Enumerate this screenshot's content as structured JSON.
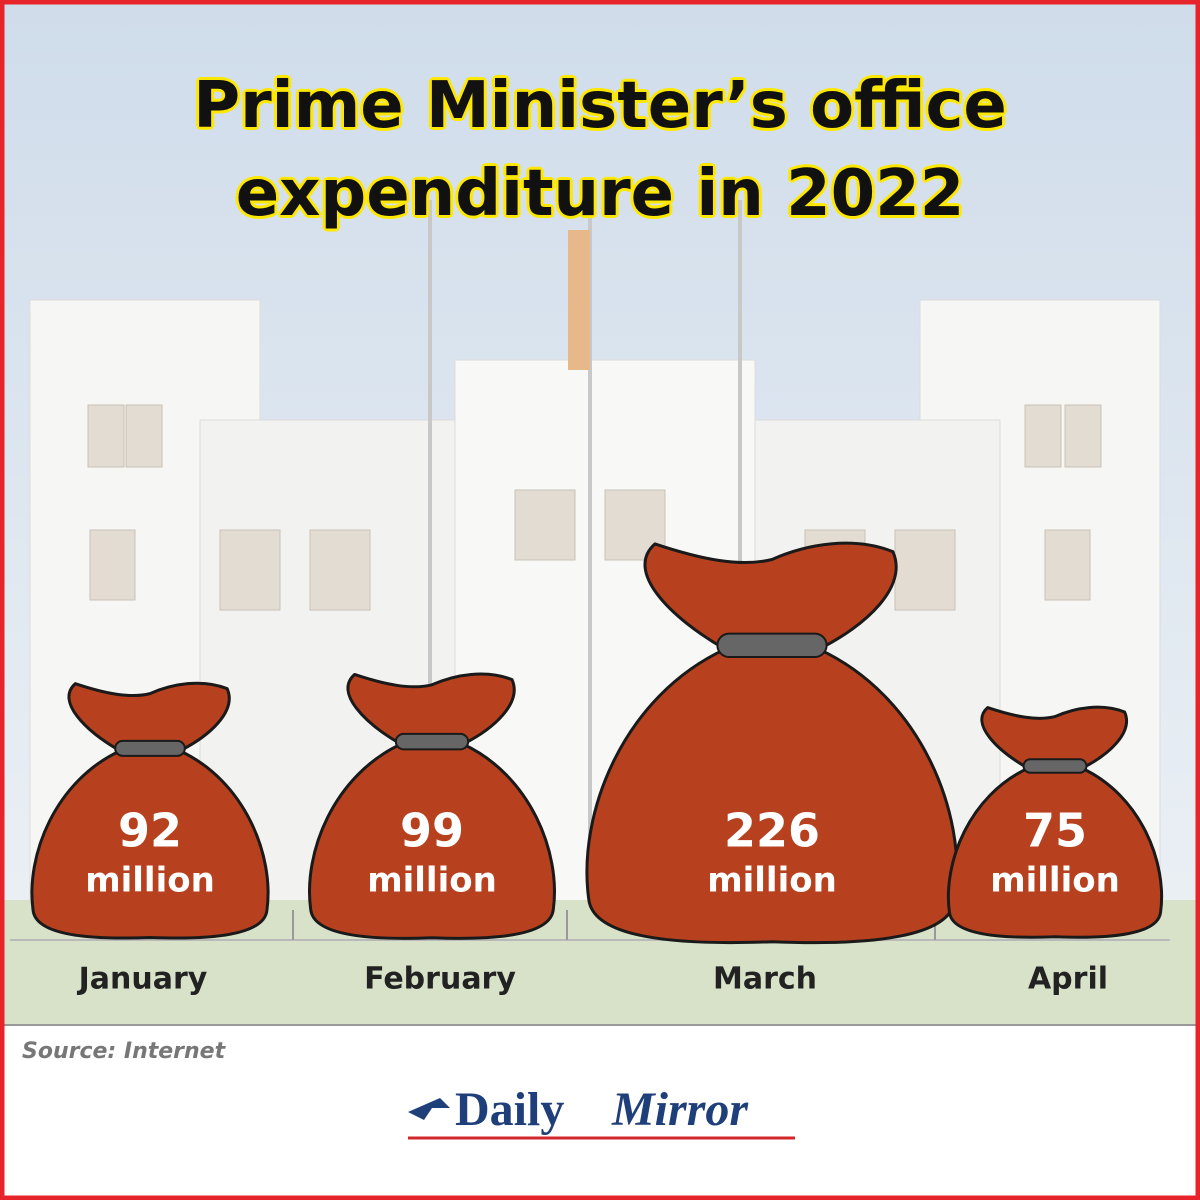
{
  "chart_data": {
    "type": "bag",
    "title": "Prime Minister’s office expenditure in 2022",
    "categories": [
      "January",
      "February",
      "March",
      "April"
    ],
    "values": [
      92,
      99,
      226,
      75
    ],
    "unit": "million",
    "color": "#b7411f",
    "source": "Source: Internet",
    "logo": [
      "Daily",
      "Mirror"
    ]
  }
}
